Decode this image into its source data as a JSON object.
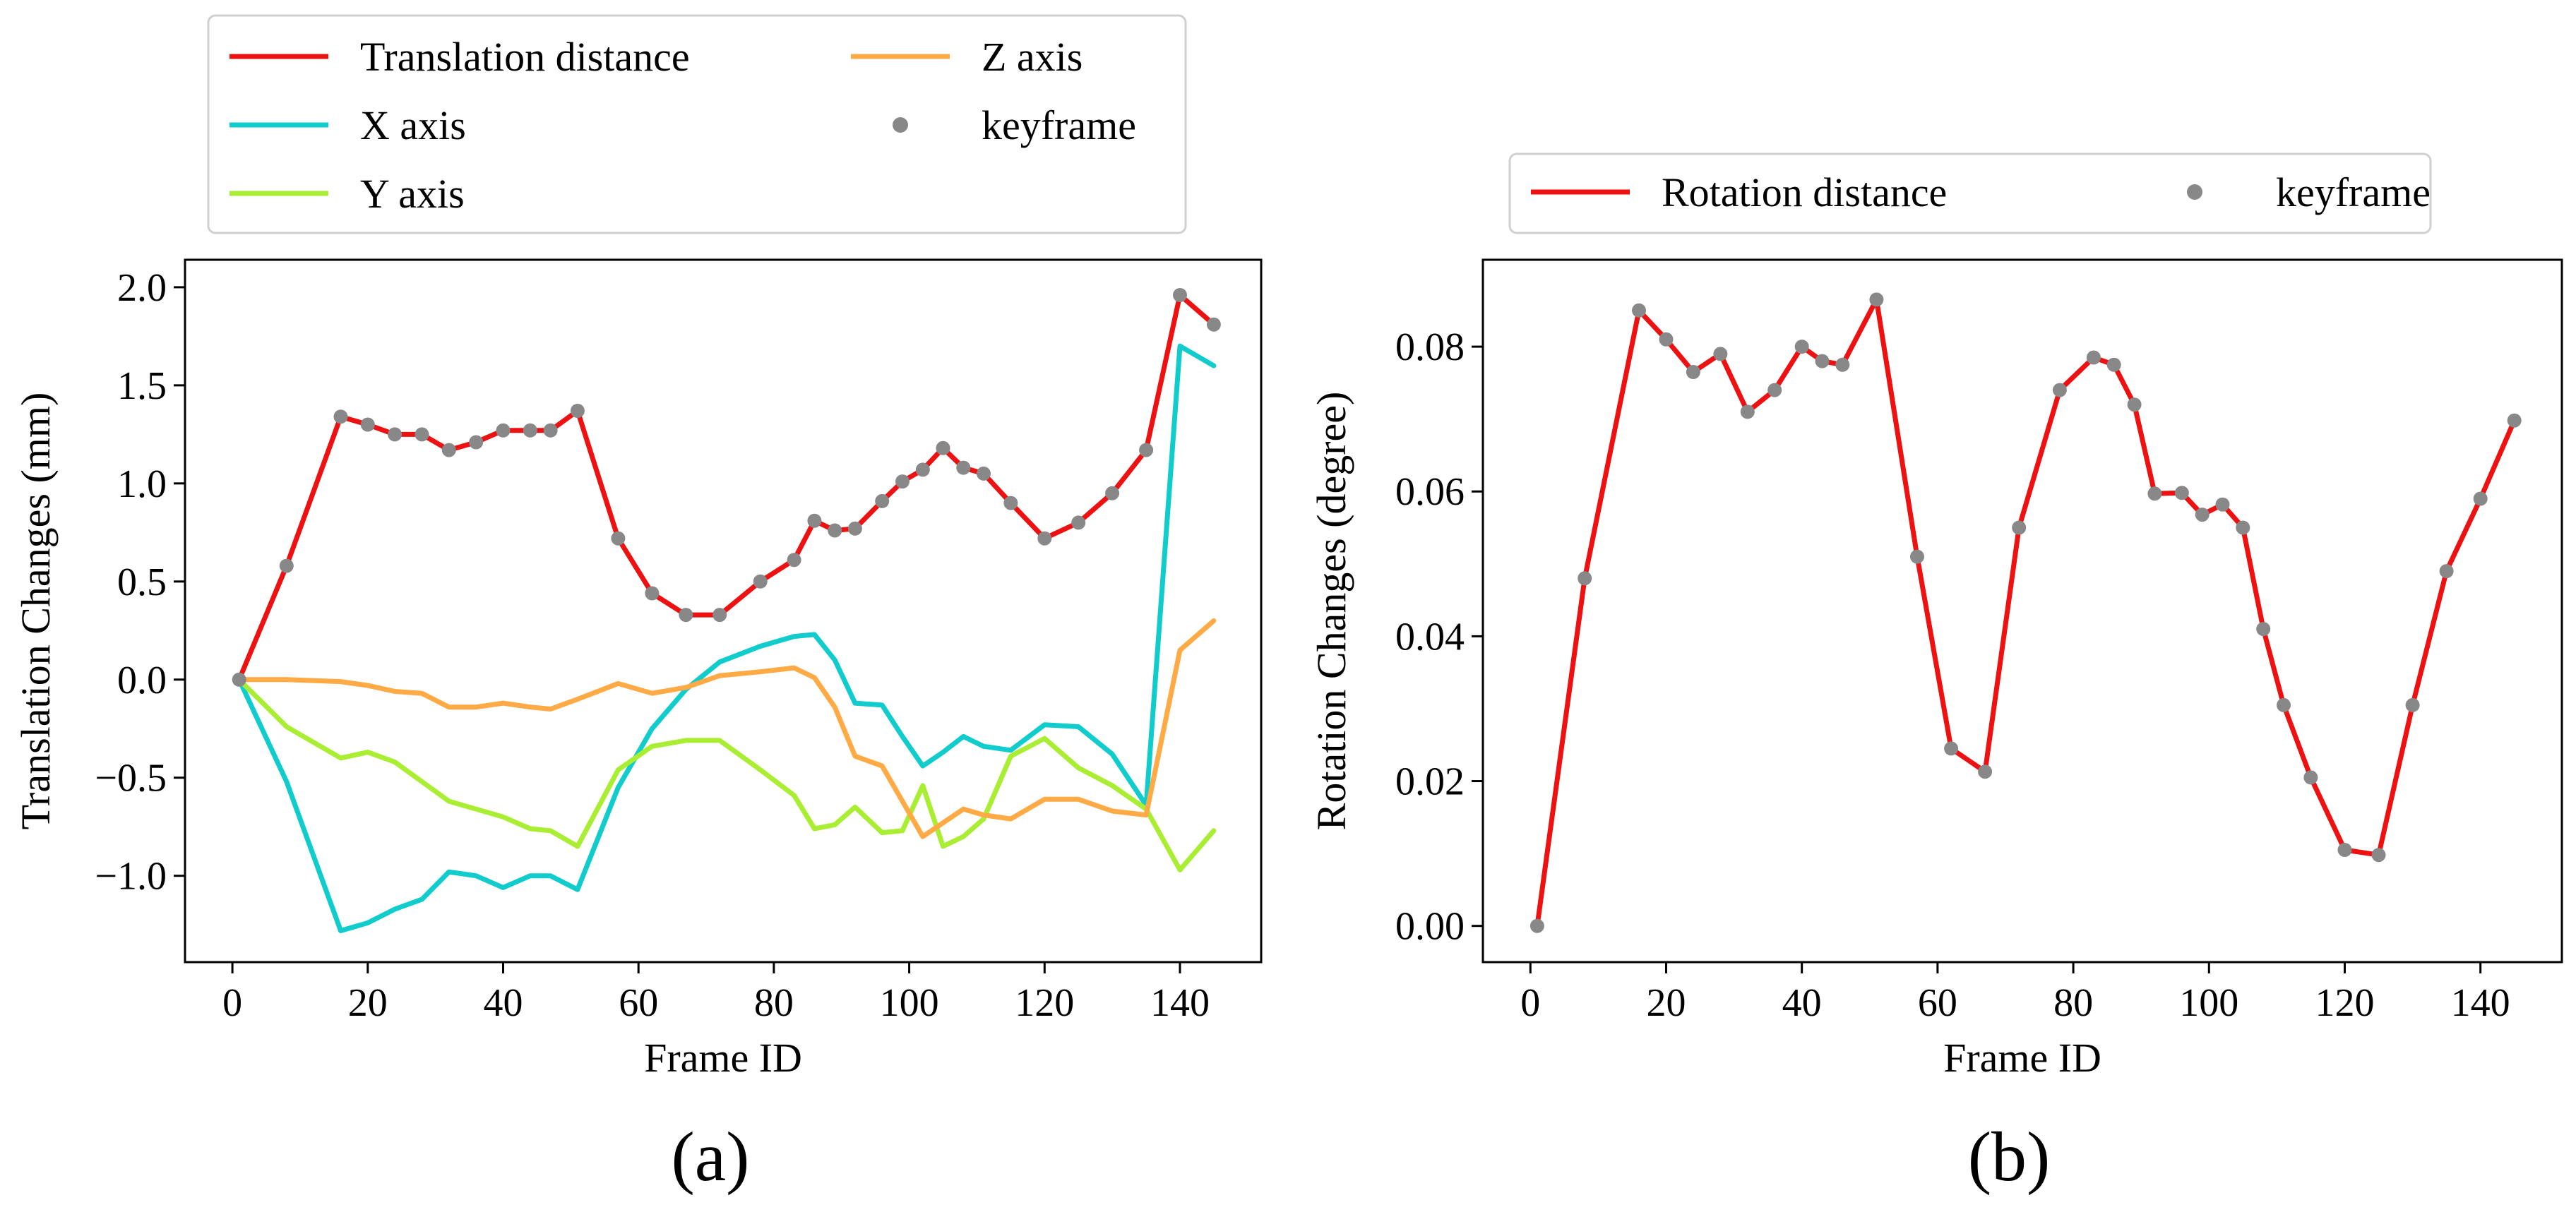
{
  "figure": {
    "caption_a": "(a)",
    "caption_b": "(b)"
  },
  "chart_data": [
    {
      "id": "a",
      "type": "line",
      "title": "",
      "xlabel": "Frame ID",
      "ylabel": "Translation Changes (mm)",
      "xlim": [
        -7,
        152
      ],
      "ylim": [
        -1.44,
        2.14
      ],
      "xticks": [
        0,
        20,
        40,
        60,
        80,
        100,
        120,
        140
      ],
      "yticks": [
        -1.0,
        -0.5,
        0.0,
        0.5,
        1.0,
        1.5,
        2.0
      ],
      "ytick_labels": [
        "−1.0",
        "−0.5",
        "0.0",
        "0.5",
        "1.0",
        "1.5",
        "2.0"
      ],
      "grid": false,
      "legend_position": "top",
      "legend_order": [
        "Translation distance",
        "X axis",
        "Y axis",
        "Z axis",
        "keyframe"
      ],
      "series": [
        {
          "name": "Translation distance",
          "color": "#ee1111",
          "x": [
            1,
            8,
            16,
            20,
            24,
            28,
            32,
            36,
            40,
            44,
            47,
            51,
            57,
            62,
            67,
            72,
            78,
            83,
            86,
            89,
            92,
            96,
            99,
            102,
            105,
            108,
            111,
            115,
            120,
            125,
            130,
            135,
            140,
            145
          ],
          "y": [
            0.0,
            0.58,
            1.34,
            1.3,
            1.25,
            1.25,
            1.17,
            1.21,
            1.27,
            1.27,
            1.27,
            1.37,
            0.72,
            0.44,
            0.33,
            0.33,
            0.5,
            0.61,
            0.81,
            0.76,
            0.77,
            0.91,
            1.01,
            1.07,
            1.18,
            1.08,
            1.05,
            0.9,
            0.72,
            0.8,
            0.95,
            1.17,
            1.96,
            1.81
          ]
        },
        {
          "name": "X axis",
          "color": "#11cccc",
          "x": [
            1,
            8,
            16,
            20,
            24,
            28,
            32,
            36,
            40,
            44,
            47,
            51,
            57,
            62,
            67,
            72,
            78,
            83,
            86,
            89,
            92,
            96,
            99,
            102,
            105,
            108,
            111,
            115,
            120,
            125,
            130,
            135,
            140,
            145
          ],
          "y": [
            0.0,
            -0.52,
            -1.28,
            -1.24,
            -1.17,
            -1.12,
            -0.98,
            -1.0,
            -1.06,
            -1.0,
            -1.0,
            -1.07,
            -0.55,
            -0.25,
            -0.05,
            0.09,
            0.17,
            0.22,
            0.23,
            0.1,
            -0.12,
            -0.13,
            -0.29,
            -0.44,
            -0.37,
            -0.29,
            -0.34,
            -0.36,
            -0.23,
            -0.24,
            -0.38,
            -0.64,
            1.7,
            1.6
          ]
        },
        {
          "name": "Y axis",
          "color": "#aaee33",
          "x": [
            1,
            8,
            16,
            20,
            24,
            28,
            32,
            36,
            40,
            44,
            47,
            51,
            57,
            62,
            67,
            72,
            78,
            83,
            86,
            89,
            92,
            96,
            99,
            102,
            105,
            108,
            111,
            115,
            120,
            125,
            130,
            135,
            140,
            145
          ],
          "y": [
            0.0,
            -0.24,
            -0.4,
            -0.37,
            -0.42,
            -0.52,
            -0.62,
            -0.66,
            -0.7,
            -0.76,
            -0.77,
            -0.85,
            -0.46,
            -0.34,
            -0.31,
            -0.31,
            -0.46,
            -0.59,
            -0.76,
            -0.74,
            -0.65,
            -0.78,
            -0.77,
            -0.54,
            -0.85,
            -0.8,
            -0.71,
            -0.39,
            -0.3,
            -0.45,
            -0.54,
            -0.66,
            -0.97,
            -0.77
          ]
        },
        {
          "name": "Z axis",
          "color": "#ffaa44",
          "x": [
            1,
            8,
            16,
            20,
            24,
            28,
            32,
            36,
            40,
            44,
            47,
            51,
            57,
            62,
            67,
            72,
            78,
            83,
            86,
            89,
            92,
            96,
            99,
            102,
            105,
            108,
            111,
            115,
            120,
            125,
            130,
            135,
            140,
            145
          ],
          "y": [
            0.0,
            0.0,
            -0.01,
            -0.03,
            -0.06,
            -0.07,
            -0.14,
            -0.14,
            -0.12,
            -0.14,
            -0.15,
            -0.1,
            -0.02,
            -0.07,
            -0.04,
            0.02,
            0.04,
            0.06,
            0.01,
            -0.14,
            -0.39,
            -0.44,
            -0.62,
            -0.8,
            -0.73,
            -0.66,
            -0.69,
            -0.71,
            -0.61,
            -0.61,
            -0.67,
            -0.69,
            0.15,
            0.3
          ]
        },
        {
          "name": "keyframe",
          "type": "scatter",
          "color": "#888888",
          "on_series": "Translation distance",
          "x": [
            1,
            8,
            16,
            20,
            24,
            28,
            32,
            36,
            40,
            44,
            47,
            51,
            57,
            62,
            67,
            72,
            78,
            83,
            86,
            89,
            92,
            96,
            99,
            102,
            105,
            108,
            111,
            115,
            120,
            125,
            130,
            135,
            140,
            145
          ],
          "y": [
            0.0,
            0.58,
            1.34,
            1.3,
            1.25,
            1.25,
            1.17,
            1.21,
            1.27,
            1.27,
            1.27,
            1.37,
            0.72,
            0.44,
            0.33,
            0.33,
            0.5,
            0.61,
            0.81,
            0.76,
            0.77,
            0.91,
            1.01,
            1.07,
            1.18,
            1.08,
            1.05,
            0.9,
            0.72,
            0.8,
            0.95,
            1.17,
            1.96,
            1.81
          ]
        }
      ]
    },
    {
      "id": "b",
      "type": "line",
      "title": "",
      "xlabel": "Frame ID",
      "ylabel": "Rotation Changes (degree)",
      "xlim": [
        -7,
        152
      ],
      "ylim": [
        -0.005,
        0.092
      ],
      "xticks": [
        0,
        20,
        40,
        60,
        80,
        100,
        120,
        140
      ],
      "yticks": [
        0.0,
        0.02,
        0.04,
        0.06,
        0.08
      ],
      "ytick_labels": [
        "0.00",
        "0.02",
        "0.04",
        "0.06",
        "0.08"
      ],
      "grid": false,
      "legend_position": "top",
      "legend_order": [
        "Rotation distance",
        "keyframe"
      ],
      "series": [
        {
          "name": "Rotation distance",
          "color": "#ee1111",
          "x": [
            1,
            8,
            16,
            20,
            24,
            28,
            32,
            36,
            40,
            43,
            46,
            51,
            57,
            62,
            67,
            72,
            78,
            83,
            86,
            89,
            92,
            96,
            99,
            102,
            105,
            108,
            111,
            115,
            120,
            125,
            130,
            135,
            140,
            145
          ],
          "y": [
            0.0,
            0.048,
            0.085,
            0.081,
            0.0765,
            0.079,
            0.071,
            0.074,
            0.08,
            0.078,
            0.0775,
            0.0865,
            0.051,
            0.0245,
            0.0213,
            0.055,
            0.074,
            0.0785,
            0.0775,
            0.072,
            0.0597,
            0.0598,
            0.0568,
            0.0582,
            0.055,
            0.041,
            0.0305,
            0.0205,
            0.0105,
            0.0098,
            0.0305,
            0.049,
            0.059,
            0.0698
          ]
        },
        {
          "name": "keyframe",
          "type": "scatter",
          "color": "#888888",
          "on_series": "Rotation distance",
          "x": [
            1,
            8,
            16,
            20,
            24,
            28,
            32,
            36,
            40,
            43,
            46,
            51,
            57,
            62,
            67,
            72,
            78,
            83,
            86,
            89,
            92,
            96,
            99,
            102,
            105,
            108,
            111,
            115,
            120,
            125,
            130,
            135,
            140,
            145
          ],
          "y": [
            0.0,
            0.048,
            0.085,
            0.081,
            0.0765,
            0.079,
            0.071,
            0.074,
            0.08,
            0.078,
            0.0775,
            0.0865,
            0.051,
            0.0245,
            0.0213,
            0.055,
            0.074,
            0.0785,
            0.0775,
            0.072,
            0.0597,
            0.0598,
            0.0568,
            0.0582,
            0.055,
            0.041,
            0.0305,
            0.0205,
            0.0105,
            0.0098,
            0.0305,
            0.049,
            0.059,
            0.0698
          ]
        }
      ]
    }
  ]
}
